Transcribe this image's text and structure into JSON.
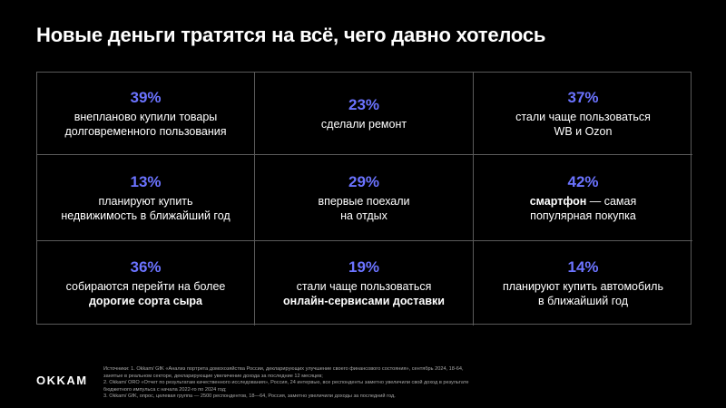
{
  "title": "Новые деньги тратятся на всё, чего давно хотелось",
  "cells": [
    {
      "pct": "39%",
      "line1": "внепланово купили товары",
      "line2": "долговременного пользования"
    },
    {
      "pct": "23%",
      "line1": "сделали ремонт",
      "line2": ""
    },
    {
      "pct": "37%",
      "line1": "стали чаще пользоваться",
      "line2": "WB и Ozon"
    },
    {
      "pct": "13%",
      "line1": "планируют купить",
      "line2": "недвижимость в ближайший год"
    },
    {
      "pct": "29%",
      "line1": "впервые поехали",
      "line2": "на отдых"
    },
    {
      "pct": "42%",
      "bold": "смартфон",
      "line1": " — самая",
      "line2": "популярная покупка"
    },
    {
      "pct": "36%",
      "line1": "собираются перейти на более",
      "line2": "дорогие сорта сыра"
    },
    {
      "pct": "19%",
      "line1": "стали чаще пользоваться",
      "line2": "онлайн-сервисами доставки"
    },
    {
      "pct": "14%",
      "line1": "планируют купить автомобиль",
      "line2": "в ближайший год"
    }
  ],
  "logo": "OKKAM",
  "sources": [
    "Источники: 1. Okkam/ GfK «Анализ портрета домохозяйства России, декларирующих улучшение своего финансового состояния», сентябрь 2024, 18-64,",
    "занятые в реальном секторе, декларирующие увеличение дохода за последние 12 месяцев;",
    "2. Okkam/ ОRО «Отчет по результатам качественного исследования», Россия, 24 интервью, все респонденты заметно увеличили свой доход в результате",
    "бюджетного импульса с начала 2022-го по 2024 год;",
    "3. Okkam/ GfK, опрос, целевая группа — 2500 респондентов, 18—64, Россия, заметно увеличили доходы за последний год."
  ],
  "colors": {
    "background": "#000000",
    "accent": "#6b73ff",
    "text": "#ffffff",
    "border": "#5a5a5a"
  }
}
